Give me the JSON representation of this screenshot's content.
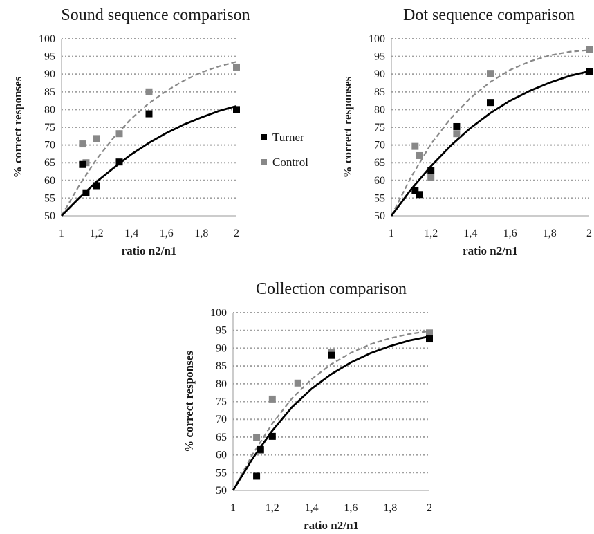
{
  "chart_data": [
    {
      "type": "scatter",
      "title": "Sound sequence comparison",
      "xlabel": "ratio n2/n1",
      "ylabel": "% correct responses",
      "xlim": [
        1,
        2
      ],
      "ylim": [
        50,
        100
      ],
      "xticks": [
        "1",
        "1,2",
        "1,4",
        "1,6",
        "1,8",
        "2"
      ],
      "yticks": [
        "50",
        "55",
        "60",
        "65",
        "70",
        "75",
        "80",
        "85",
        "90",
        "95",
        "100"
      ],
      "grid": true,
      "series": [
        {
          "name": "Turner",
          "color": "#000000",
          "points": [
            [
              1.12,
              64.5
            ],
            [
              1.14,
              56.5
            ],
            [
              1.2,
              58.5
            ],
            [
              1.33,
              65.2
            ],
            [
              1.5,
              78.8
            ],
            [
              2.0,
              80.0
            ]
          ],
          "fit": [
            [
              1.0,
              50.0
            ],
            [
              1.1,
              55.0
            ],
            [
              1.2,
              59.6
            ],
            [
              1.3,
              63.6
            ],
            [
              1.4,
              67.4
            ],
            [
              1.5,
              70.6
            ],
            [
              1.6,
              73.4
            ],
            [
              1.7,
              75.8
            ],
            [
              1.8,
              77.8
            ],
            [
              1.9,
              79.6
            ],
            [
              2.0,
              81.0
            ]
          ]
        },
        {
          "name": "Control",
          "color": "#888888",
          "points": [
            [
              1.12,
              70.3
            ],
            [
              1.14,
              65.0
            ],
            [
              1.2,
              71.8
            ],
            [
              1.33,
              73.2
            ],
            [
              1.5,
              85.0
            ],
            [
              2.0,
              92.0
            ]
          ],
          "fit": [
            [
              1.0,
              50.0
            ],
            [
              1.1,
              58.5
            ],
            [
              1.2,
              66.0
            ],
            [
              1.3,
              72.2
            ],
            [
              1.4,
              77.5
            ],
            [
              1.5,
              81.8
            ],
            [
              1.6,
              85.3
            ],
            [
              1.7,
              88.2
            ],
            [
              1.8,
              90.5
            ],
            [
              1.9,
              92.2
            ],
            [
              2.0,
              93.5
            ]
          ]
        }
      ]
    },
    {
      "type": "scatter",
      "title": "Dot sequence comparison",
      "xlabel": "ratio n2/n1",
      "ylabel": "% correct responses",
      "xlim": [
        1,
        2
      ],
      "ylim": [
        50,
        100
      ],
      "xticks": [
        "1",
        "1,2",
        "1,4",
        "1,6",
        "1,8",
        "2"
      ],
      "yticks": [
        "50",
        "55",
        "60",
        "65",
        "70",
        "75",
        "80",
        "85",
        "90",
        "95",
        "100"
      ],
      "grid": true,
      "series": [
        {
          "name": "Turner",
          "color": "#000000",
          "points": [
            [
              1.12,
              57.2
            ],
            [
              1.14,
              56.0
            ],
            [
              1.2,
              62.8
            ],
            [
              1.33,
              75.2
            ],
            [
              1.5,
              82.0
            ],
            [
              2.0,
              90.8
            ]
          ],
          "fit": [
            [
              1.0,
              50.0
            ],
            [
              1.1,
              57.5
            ],
            [
              1.2,
              64.0
            ],
            [
              1.3,
              69.8
            ],
            [
              1.4,
              74.8
            ],
            [
              1.5,
              79.0
            ],
            [
              1.6,
              82.5
            ],
            [
              1.7,
              85.3
            ],
            [
              1.8,
              87.6
            ],
            [
              1.9,
              89.5
            ],
            [
              2.0,
              90.8
            ]
          ]
        },
        {
          "name": "Control",
          "color": "#888888",
          "points": [
            [
              1.12,
              69.6
            ],
            [
              1.14,
              67.0
            ],
            [
              1.2,
              60.8
            ],
            [
              1.33,
              73.2
            ],
            [
              1.5,
              90.2
            ],
            [
              2.0,
              97.0
            ]
          ],
          "fit": [
            [
              1.0,
              50.0
            ],
            [
              1.1,
              61.0
            ],
            [
              1.2,
              70.3
            ],
            [
              1.3,
              77.5
            ],
            [
              1.4,
              83.3
            ],
            [
              1.5,
              87.8
            ],
            [
              1.6,
              91.2
            ],
            [
              1.7,
              93.6
            ],
            [
              1.8,
              95.3
            ],
            [
              1.9,
              96.3
            ],
            [
              2.0,
              96.8
            ]
          ]
        }
      ]
    },
    {
      "type": "scatter",
      "title": "Collection comparison",
      "xlabel": "ratio n2/n1",
      "ylabel": "% correct responses",
      "xlim": [
        1,
        2
      ],
      "ylim": [
        50,
        100
      ],
      "xticks": [
        "1",
        "1,2",
        "1,4",
        "1,6",
        "1,8",
        "2"
      ],
      "yticks": [
        "50",
        "55",
        "60",
        "65",
        "70",
        "75",
        "80",
        "85",
        "90",
        "95",
        "100"
      ],
      "grid": true,
      "series": [
        {
          "name": "Turner",
          "color": "#000000",
          "points": [
            [
              1.12,
              54.0
            ],
            [
              1.14,
              61.5
            ],
            [
              1.2,
              65.2
            ],
            [
              1.5,
              88.0
            ],
            [
              2.0,
              92.6
            ]
          ],
          "fit": [
            [
              1.0,
              50.0
            ],
            [
              1.1,
              59.0
            ],
            [
              1.2,
              66.8
            ],
            [
              1.3,
              73.4
            ],
            [
              1.4,
              78.6
            ],
            [
              1.5,
              82.7
            ],
            [
              1.6,
              86.0
            ],
            [
              1.7,
              88.6
            ],
            [
              1.8,
              90.6
            ],
            [
              1.9,
              92.2
            ],
            [
              2.0,
              93.3
            ]
          ]
        },
        {
          "name": "Control",
          "color": "#888888",
          "points": [
            [
              1.12,
              64.8
            ],
            [
              1.14,
              61.2
            ],
            [
              1.2,
              75.7
            ],
            [
              1.33,
              80.2
            ],
            [
              1.5,
              88.8
            ],
            [
              2.0,
              94.3
            ]
          ],
          "fit": [
            [
              1.0,
              50.0
            ],
            [
              1.1,
              60.2
            ],
            [
              1.2,
              68.8
            ],
            [
              1.3,
              75.9
            ],
            [
              1.4,
              81.3
            ],
            [
              1.5,
              85.5
            ],
            [
              1.6,
              88.7
            ],
            [
              1.7,
              91.1
            ],
            [
              1.8,
              92.8
            ],
            [
              1.9,
              94.0
            ],
            [
              2.0,
              94.8
            ]
          ]
        }
      ]
    }
  ],
  "legend": {
    "placement": "center-right of top-left chart",
    "items": [
      {
        "label": "Turner",
        "color": "#000000"
      },
      {
        "label": "Control",
        "color": "#888888"
      }
    ]
  }
}
